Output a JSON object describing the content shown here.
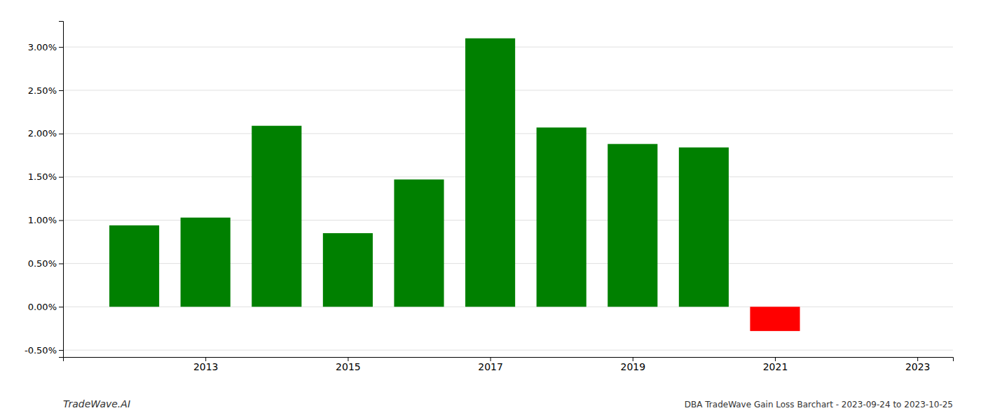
{
  "chart_data": {
    "type": "bar",
    "x": [
      2012,
      2013,
      2014,
      2015,
      2016,
      2017,
      2018,
      2019,
      2020,
      2021,
      2022
    ],
    "values": [
      0.0094,
      0.0103,
      0.0209,
      0.0085,
      0.0147,
      0.031,
      0.0207,
      0.0188,
      0.0184,
      -0.0028,
      0.0
    ],
    "colors": [
      "#008000",
      "#008000",
      "#008000",
      "#008000",
      "#008000",
      "#008000",
      "#008000",
      "#008000",
      "#008000",
      "#ff0000",
      "#008000"
    ],
    "xlim": [
      2011.0,
      2023.5
    ],
    "xticks": [
      2013,
      2015,
      2017,
      2019,
      2021,
      2023
    ],
    "ylim": [
      -0.0058,
      0.033
    ],
    "yticks": [
      {
        "value": -0.005,
        "label": "-0.50%"
      },
      {
        "value": 0,
        "label": "0.00%"
      },
      {
        "value": 0.005,
        "label": "0.50%"
      },
      {
        "value": 0.01,
        "label": "1.00%"
      },
      {
        "value": 0.015,
        "label": "1.50%"
      },
      {
        "value": 0.02,
        "label": "2.00%"
      },
      {
        "value": 0.025,
        "label": "2.50%"
      },
      {
        "value": 0.03,
        "label": "3.00%"
      }
    ],
    "grid": true,
    "annotations": [
      "TradeWave.AI",
      "DBA TradeWave Gain Loss Barchart - 2023-09-24 to 2023-10-25"
    ]
  }
}
